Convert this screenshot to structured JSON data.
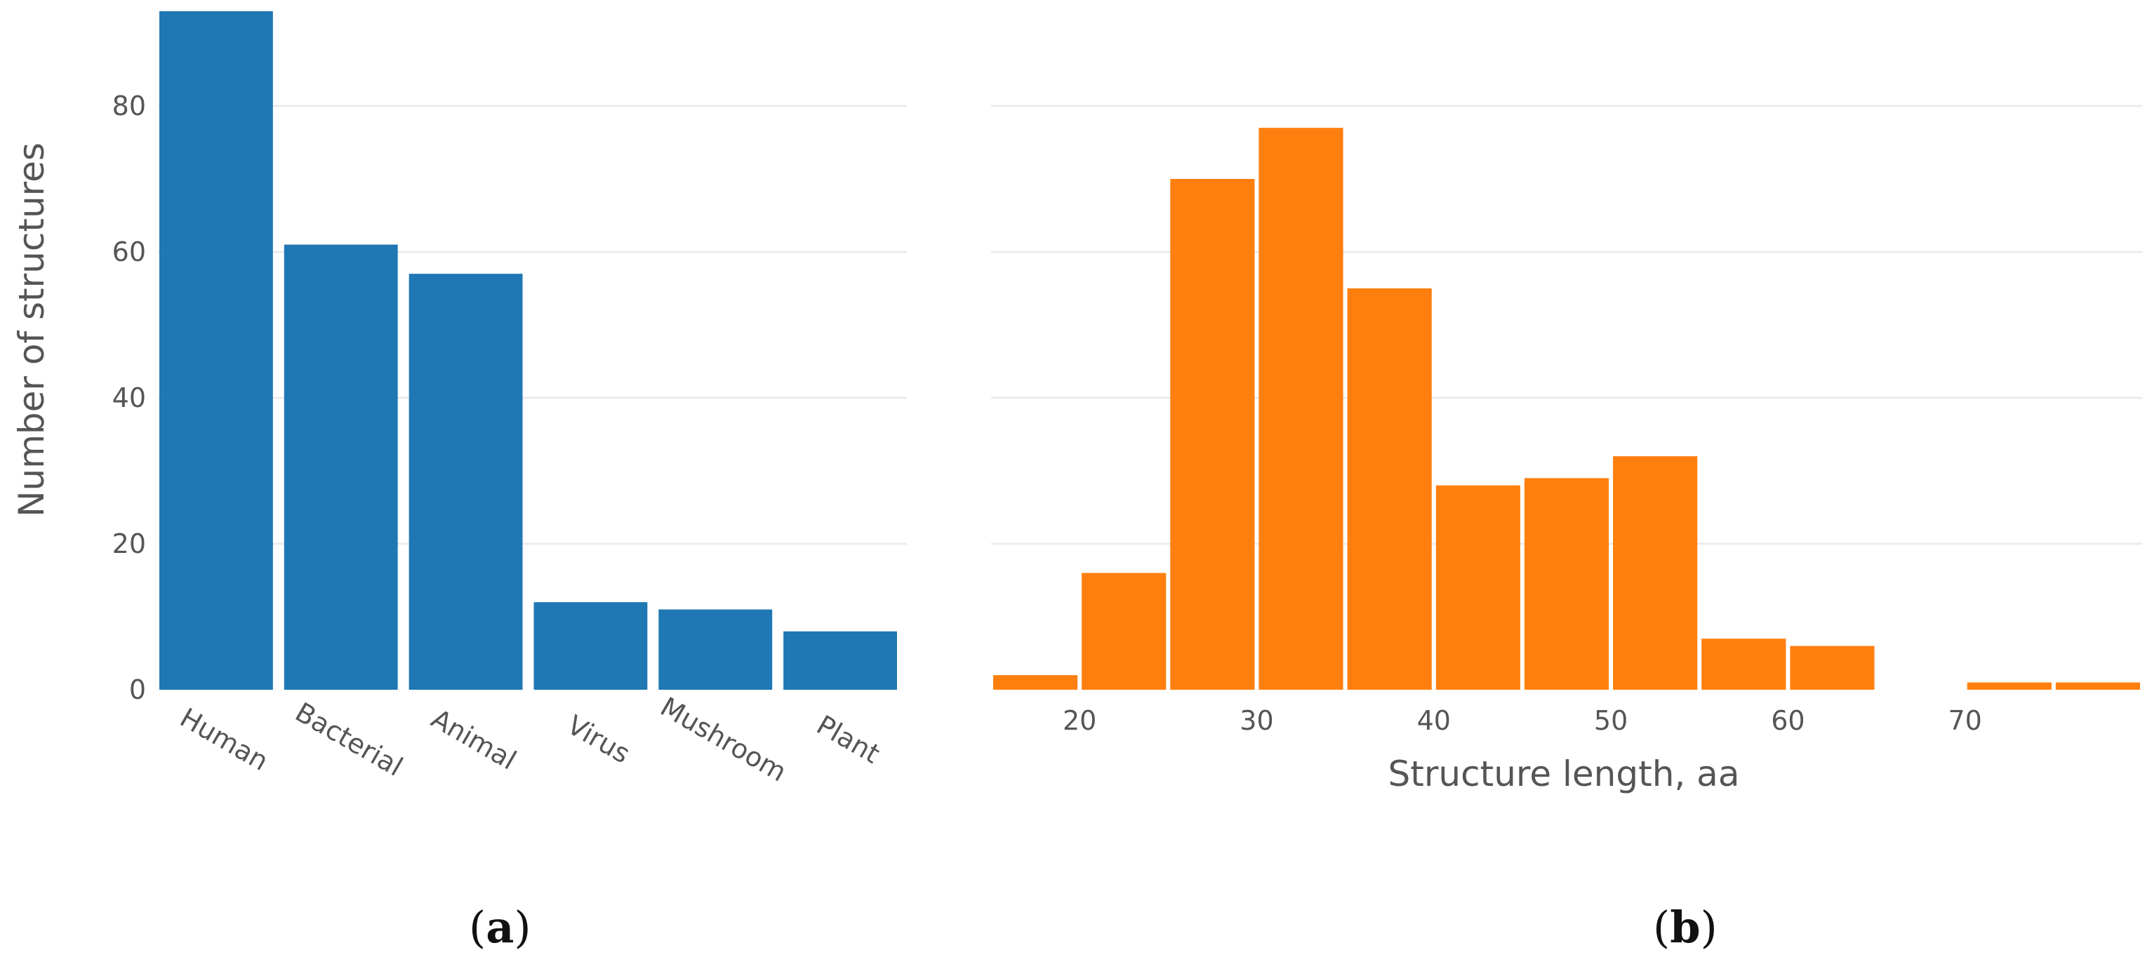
{
  "chart_data": [
    {
      "type": "bar",
      "categories": [
        "Human",
        "Bacterial",
        "Animal",
        "Virus",
        "Mushroom",
        "Plant"
      ],
      "values": [
        93,
        61,
        57,
        12,
        11,
        8
      ],
      "ylabel": "Number of structures",
      "xlabel": "",
      "ylim": [
        0,
        93
      ],
      "yticks": [
        "0",
        "20",
        "40",
        "60",
        "80"
      ],
      "grid": true,
      "color": "#1f77b4",
      "caption": {
        "open": "(",
        "letter": "a",
        "close": ")"
      }
    },
    {
      "type": "bar",
      "bins": [
        {
          "x0": 15,
          "x1": 20,
          "value": 2
        },
        {
          "x0": 20,
          "x1": 25,
          "value": 16
        },
        {
          "x0": 25,
          "x1": 30,
          "value": 70
        },
        {
          "x0": 30,
          "x1": 35,
          "value": 77
        },
        {
          "x0": 35,
          "x1": 40,
          "value": 55
        },
        {
          "x0": 40,
          "x1": 45,
          "value": 28
        },
        {
          "x0": 45,
          "x1": 50,
          "value": 29
        },
        {
          "x0": 50,
          "x1": 55,
          "value": 32
        },
        {
          "x0": 55,
          "x1": 60,
          "value": 7
        },
        {
          "x0": 60,
          "x1": 65,
          "value": 6
        },
        {
          "x0": 65,
          "x1": 70,
          "value": 0
        },
        {
          "x0": 70,
          "x1": 75,
          "value": 1
        },
        {
          "x0": 75,
          "x1": 80,
          "value": 1
        }
      ],
      "xlabel": "Structure length, aa",
      "ylabel": "",
      "xticks": [
        "20",
        "30",
        "40",
        "50",
        "60",
        "70"
      ],
      "xlim": [
        15,
        80
      ],
      "ylim": [
        0,
        93
      ],
      "grid": true,
      "color": "#ff7f0e",
      "caption": {
        "open": "(",
        "letter": "b",
        "close": ")"
      }
    }
  ]
}
